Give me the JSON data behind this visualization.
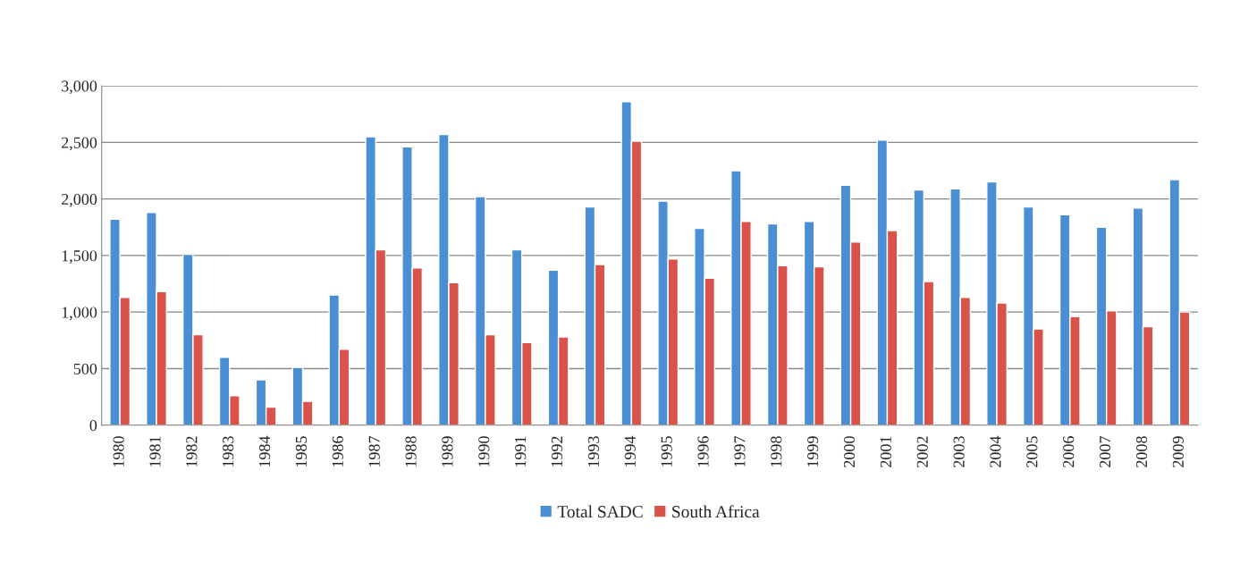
{
  "chart_data": {
    "type": "bar",
    "categories": [
      "1980",
      "1981",
      "1982",
      "1983",
      "1984",
      "1985",
      "1986",
      "1987",
      "1988",
      "1989",
      "1990",
      "1991",
      "1992",
      "1993",
      "1994",
      "1995",
      "1996",
      "1997",
      "1998",
      "1999",
      "2000",
      "2001",
      "2002",
      "2003",
      "2004",
      "2005",
      "2006",
      "2007",
      "2008",
      "2009"
    ],
    "series": [
      {
        "name": "Total SADC",
        "color": "#4a8fd4",
        "values": [
          1820,
          1880,
          1510,
          600,
          400,
          510,
          1150,
          2550,
          2460,
          2570,
          2020,
          1550,
          1370,
          1930,
          2860,
          1980,
          1740,
          2250,
          1780,
          1800,
          2120,
          2520,
          2080,
          2090,
          2150,
          1930,
          1860,
          1750,
          1920,
          2170
        ]
      },
      {
        "name": "South Africa",
        "color": "#d9534a",
        "values": [
          1130,
          1180,
          800,
          260,
          160,
          210,
          670,
          1550,
          1390,
          1260,
          800,
          730,
          780,
          1420,
          2510,
          1470,
          1300,
          1800,
          1410,
          1400,
          1620,
          1720,
          1270,
          1130,
          1080,
          850,
          960,
          1010,
          870,
          1000
        ]
      }
    ],
    "ylim": [
      0,
      3000
    ],
    "yticks": [
      {
        "value": 0,
        "label": "0"
      },
      {
        "value": 500,
        "label": "500"
      },
      {
        "value": 1000,
        "label": "1,000"
      },
      {
        "value": 1500,
        "label": "1,500"
      },
      {
        "value": 2000,
        "label": "2,000"
      },
      {
        "value": 2500,
        "label": "2,500"
      },
      {
        "value": 3000,
        "label": "3,000"
      }
    ],
    "grid": "y",
    "legend": "bottom"
  }
}
